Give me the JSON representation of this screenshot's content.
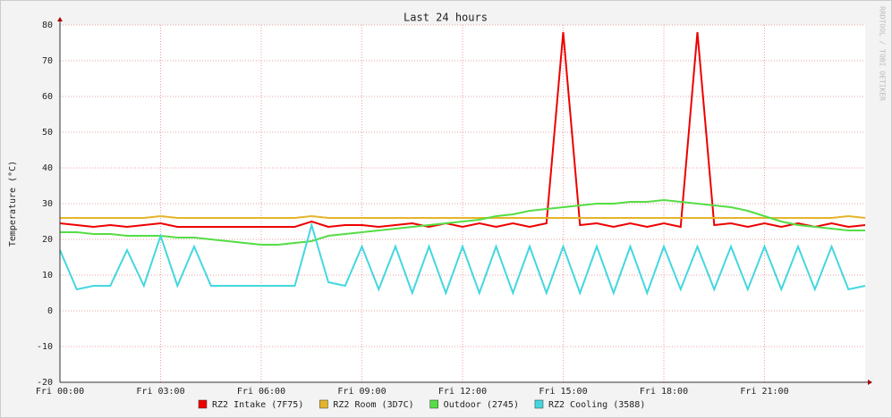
{
  "chart_data": {
    "type": "line",
    "title": "Last 24 hours",
    "ylabel": "Temperature (°C)",
    "watermark": "RRDTOOL / TOBI OETIKER",
    "x": [
      0,
      0.5,
      1,
      1.5,
      2,
      2.5,
      3,
      3.5,
      4,
      4.5,
      5,
      5.5,
      6,
      6.5,
      7,
      7.5,
      8,
      8.5,
      9,
      9.5,
      10,
      10.5,
      11,
      11.5,
      12,
      12.5,
      13,
      13.5,
      14,
      14.5,
      15,
      15.5,
      16,
      16.5,
      17,
      17.5,
      18,
      18.5,
      19,
      19.5,
      20,
      20.5,
      21,
      21.5,
      22,
      22.5,
      23,
      23.5,
      24
    ],
    "series": [
      {
        "name": "RZ2 Intake (7F75)",
        "color": "#ee0000",
        "values": [
          24.5,
          24,
          23.5,
          24,
          23.5,
          24,
          24.5,
          23.5,
          23.5,
          23.5,
          23.5,
          23.5,
          23.5,
          23.5,
          23.5,
          25,
          23.5,
          24,
          24,
          23.5,
          24,
          24.5,
          23.5,
          24.5,
          23.5,
          24.5,
          23.5,
          24.5,
          23.5,
          24.5,
          78,
          24,
          24.5,
          23.5,
          24.5,
          23.5,
          24.5,
          23.5,
          78,
          24,
          24.5,
          23.5,
          24.5,
          23.5,
          24.5,
          23.5,
          24.5,
          23.5,
          24
        ]
      },
      {
        "name": "RZ2 Room (3D7C)",
        "color": "#e5b42a",
        "values": [
          26,
          26,
          26,
          26,
          26,
          26,
          26.5,
          26,
          26,
          26,
          26,
          26,
          26,
          26,
          26,
          26.5,
          26,
          26,
          26,
          26,
          26,
          26,
          26,
          26,
          26,
          26,
          26,
          26,
          26,
          26,
          26,
          26,
          26,
          26,
          26,
          26,
          26,
          26,
          26,
          26,
          26,
          26,
          26,
          26,
          26,
          26,
          26,
          26.5,
          26
        ]
      },
      {
        "name": "Outdoor (2745)",
        "color": "#55dd44",
        "values": [
          22,
          22,
          21.5,
          21.5,
          21,
          21,
          21,
          20.5,
          20.5,
          20,
          19.5,
          19,
          18.5,
          18.5,
          19,
          19.5,
          21,
          21.5,
          22,
          22.5,
          23,
          23.5,
          24,
          24.5,
          25,
          25.5,
          26.5,
          27,
          28,
          28.5,
          29,
          29.5,
          30,
          30,
          30.5,
          30.5,
          31,
          30.5,
          30,
          29.5,
          29,
          28,
          26.5,
          25,
          24,
          23.5,
          23,
          22.5,
          22.5
        ]
      },
      {
        "name": "RZ2 Cooling (3588)",
        "color": "#44d7e0",
        "values": [
          17,
          6,
          7,
          7,
          17,
          7,
          21,
          7,
          18,
          7,
          7,
          7,
          7,
          7,
          7,
          24,
          8,
          7,
          18,
          6,
          18,
          5,
          18,
          5,
          18,
          5,
          18,
          5,
          18,
          5,
          18,
          5,
          18,
          5,
          18,
          5,
          18,
          6,
          18,
          6,
          18,
          6,
          18,
          6,
          18,
          6,
          18,
          6,
          7
        ]
      }
    ],
    "xlim": [
      0,
      24
    ],
    "ylim": [
      -20,
      80
    ],
    "xticks": [
      {
        "value": 0,
        "label": "Fri 00:00"
      },
      {
        "value": 3,
        "label": "Fri 03:00"
      },
      {
        "value": 6,
        "label": "Fri 06:00"
      },
      {
        "value": 9,
        "label": "Fri 09:00"
      },
      {
        "value": 12,
        "label": "Fri 12:00"
      },
      {
        "value": 15,
        "label": "Fri 15:00"
      },
      {
        "value": 18,
        "label": "Fri 18:00"
      },
      {
        "value": 21,
        "label": "Fri 21:00"
      }
    ],
    "yticks": [
      -20,
      -10,
      0,
      10,
      20,
      30,
      40,
      50,
      60,
      70,
      80
    ],
    "grid": true
  }
}
